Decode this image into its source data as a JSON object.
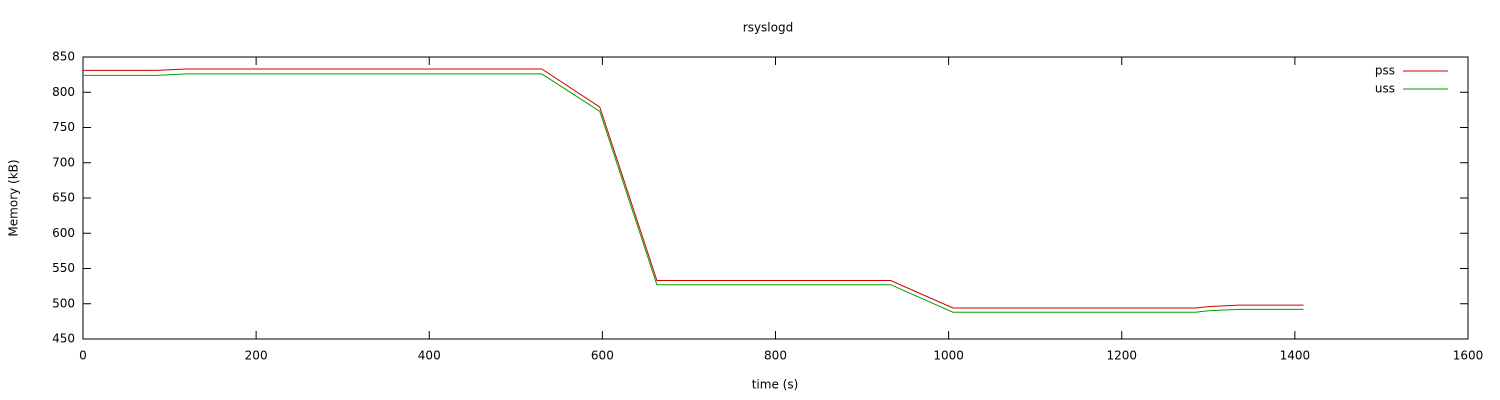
{
  "chart_data": {
    "type": "line",
    "title": "rsyslogd",
    "x_label": "time (s)",
    "y_label": "Memory (kB)",
    "x": [
      0,
      85,
      120,
      530,
      597,
      663,
      933,
      1005,
      1285,
      1300,
      1335,
      1410
    ],
    "series": [
      {
        "name": "pss",
        "color": "#d00000",
        "values": [
          831,
          831,
          833,
          833,
          779,
          533,
          533,
          494,
          494,
          496,
          498,
          498
        ]
      },
      {
        "name": "uss",
        "color": "#00a000",
        "values": [
          824,
          824,
          826,
          826,
          773,
          527,
          527,
          488,
          488,
          490,
          492,
          492
        ]
      }
    ],
    "xlim": [
      0,
      1600
    ],
    "xticks": [
      0,
      200,
      400,
      600,
      800,
      1000,
      1200,
      1400,
      1600
    ],
    "ylim": [
      450,
      850
    ],
    "yticks": [
      450,
      500,
      550,
      600,
      650,
      700,
      750,
      800,
      850
    ],
    "legend": "top-right"
  }
}
